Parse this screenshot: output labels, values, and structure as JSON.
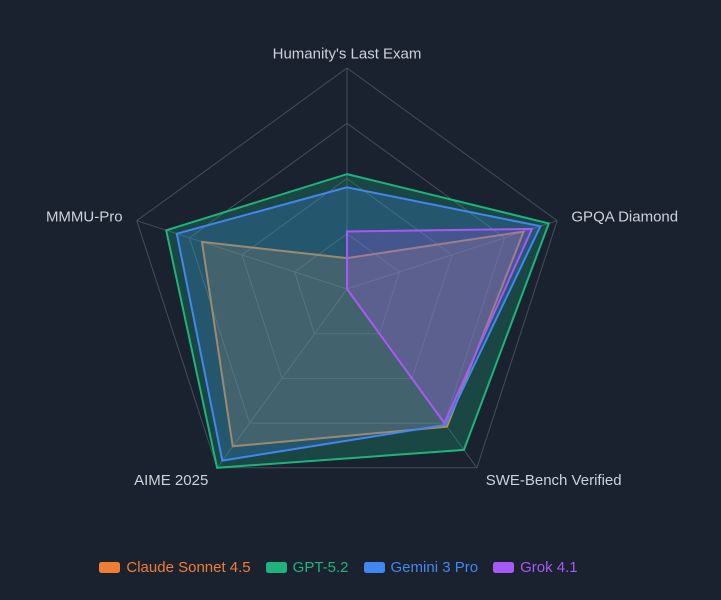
{
  "chart_data": {
    "type": "radar",
    "title": "",
    "axes": [
      "Humanity's Last Exam",
      "GPQA Diamond",
      "SWE-Bench Verified",
      "AIME 2025",
      "MMMU-Pro"
    ],
    "scale": {
      "min": 0,
      "max": 100,
      "rings": [
        25,
        50,
        75,
        100
      ]
    },
    "series": [
      {
        "name": "Claude Sonnet 4.5",
        "color": "#ee7e32",
        "values": [
          14,
          84,
          77,
          88,
          69
        ]
      },
      {
        "name": "GPT-5.2",
        "color": "#1db47c",
        "values": [
          52,
          96,
          90,
          100,
          86
        ]
      },
      {
        "name": "Gemini 3 Pro",
        "color": "#4287f0",
        "values": [
          46,
          92,
          76,
          96,
          81
        ]
      },
      {
        "name": "Grok 4.1",
        "color": "#a858f5",
        "values": [
          26,
          88,
          75,
          0,
          0
        ]
      }
    ],
    "legend_position": "bottom",
    "legend_marker": "round-rect",
    "background_color": "#1a2230",
    "grid_color": "#434d59",
    "axis_label_color": "#ccd2d9",
    "fill_opacity": 0.25,
    "grid_on": true
  }
}
